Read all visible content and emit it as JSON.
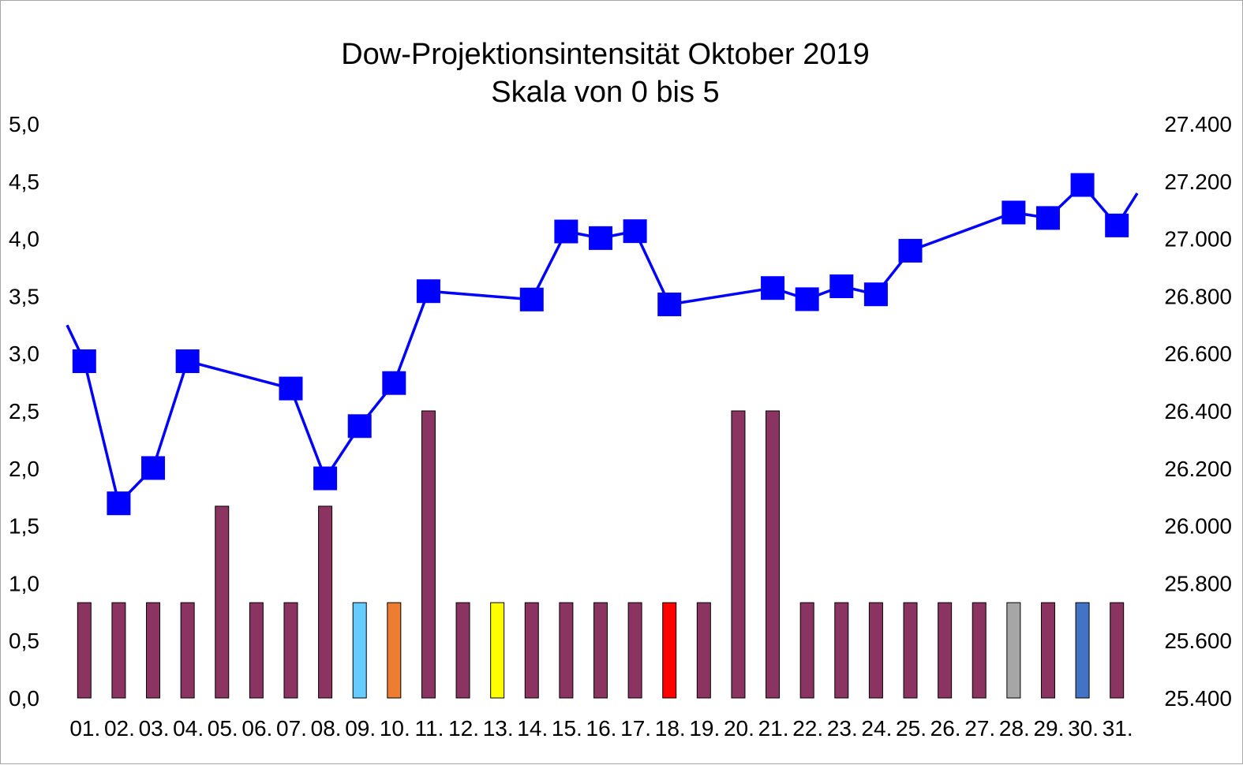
{
  "chart_data": {
    "type": "bar+line",
    "title": "Dow-Projektionsintensität Oktober 2019",
    "subtitle": "Skala von 0 bis 5",
    "categories": [
      "01.",
      "02.",
      "03.",
      "04.",
      "05.",
      "06.",
      "07.",
      "08.",
      "09.",
      "10.",
      "11.",
      "12.",
      "13.",
      "14.",
      "15.",
      "16.",
      "17.",
      "18.",
      "19.",
      "20.",
      "21.",
      "22.",
      "23.",
      "24.",
      "25.",
      "26.",
      "27.",
      "28.",
      "29.",
      "30.",
      "31."
    ],
    "left_axis": {
      "ylim": [
        0,
        5
      ],
      "ticks": [
        "0,0",
        "0,5",
        "1,0",
        "1,5",
        "2,0",
        "2,5",
        "3,0",
        "3,5",
        "4,0",
        "4,5",
        "5,0"
      ]
    },
    "right_axis": {
      "ylim": [
        25400,
        27400
      ],
      "ticks": [
        "25.400",
        "25.600",
        "25.800",
        "26.000",
        "26.200",
        "26.400",
        "26.600",
        "26.800",
        "27.000",
        "27.200",
        "27.400"
      ]
    },
    "bars": {
      "axis": "left",
      "values": [
        0.83,
        0.83,
        0.83,
        0.83,
        1.67,
        0.83,
        0.83,
        1.67,
        0.83,
        0.83,
        2.5,
        0.83,
        0.83,
        0.83,
        0.83,
        0.83,
        0.83,
        0.83,
        0.83,
        2.5,
        2.5,
        0.83,
        0.83,
        0.83,
        0.83,
        0.83,
        0.83,
        0.83,
        0.83,
        0.83,
        0.83
      ],
      "colors": [
        "#8b3461",
        "#8b3461",
        "#8b3461",
        "#8b3461",
        "#8b3461",
        "#8b3461",
        "#8b3461",
        "#8b3461",
        "#66ccff",
        "#ed7d31",
        "#8b3461",
        "#8b3461",
        "#ffff00",
        "#8b3461",
        "#8b3461",
        "#8b3461",
        "#8b3461",
        "#ff0000",
        "#8b3461",
        "#8b3461",
        "#8b3461",
        "#8b3461",
        "#8b3461",
        "#8b3461",
        "#8b3461",
        "#8b3461",
        "#8b3461",
        "#a6a6a6",
        "#8b3461",
        "#4472c4",
        "#8b3461"
      ]
    },
    "line": {
      "axis": "right",
      "color": "#0000ff",
      "values_before_start": 26825,
      "points": [
        {
          "x": "01.",
          "y": 26573
        },
        {
          "x": "02.",
          "y": 26078
        },
        {
          "x": "03.",
          "y": 26201
        },
        {
          "x": "04.",
          "y": 26573
        },
        {
          "x": "07.",
          "y": 26478
        },
        {
          "x": "08.",
          "y": 26165
        },
        {
          "x": "09.",
          "y": 26347
        },
        {
          "x": "10.",
          "y": 26497
        },
        {
          "x": "11.",
          "y": 26817
        },
        {
          "x": "14.",
          "y": 26788
        },
        {
          "x": "15.",
          "y": 27025
        },
        {
          "x": "16.",
          "y": 27002
        },
        {
          "x": "17.",
          "y": 27026
        },
        {
          "x": "18.",
          "y": 26771
        },
        {
          "x": "21.",
          "y": 26828
        },
        {
          "x": "22.",
          "y": 26789
        },
        {
          "x": "23.",
          "y": 26834
        },
        {
          "x": "24.",
          "y": 26806
        },
        {
          "x": "25.",
          "y": 26958
        },
        {
          "x": "28.",
          "y": 27091
        },
        {
          "x": "29.",
          "y": 27072
        },
        {
          "x": "30.",
          "y": 27187
        },
        {
          "x": "31.",
          "y": 27046
        }
      ],
      "value_after_end": 27235
    },
    "grid": false,
    "legend": "none"
  }
}
